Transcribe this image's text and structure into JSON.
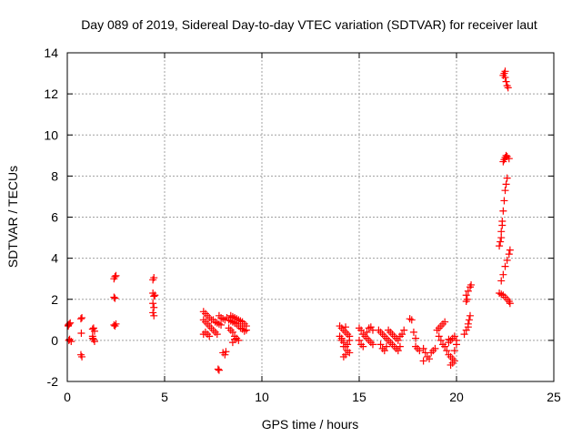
{
  "chart_data": {
    "type": "scatter",
    "title": "Day 089 of 2019, Sidereal Day-to-day VTEC variation (SDTVAR) for receiver laut",
    "xlabel": "GPS time / hours",
    "ylabel": "SDTVAR / TECUs",
    "xlim": [
      0,
      25
    ],
    "ylim": [
      -2,
      14
    ],
    "xticks": [
      0,
      5,
      10,
      15,
      20,
      25
    ],
    "yticks": [
      -2,
      0,
      2,
      4,
      6,
      8,
      10,
      12,
      14
    ],
    "grid": true,
    "marker": "plus",
    "series": [
      {
        "name": "SDTVAR",
        "color": "#ff0000",
        "points": [
          [
            0.05,
            0.7
          ],
          [
            0.1,
            0.8
          ],
          [
            0.15,
            0.85
          ],
          [
            0.08,
            0.0
          ],
          [
            0.12,
            0.05
          ],
          [
            0.2,
            -0.05
          ],
          [
            0.05,
            0.75
          ],
          [
            0.7,
            1.05
          ],
          [
            0.75,
            1.1
          ],
          [
            0.72,
            0.35
          ],
          [
            0.7,
            -0.7
          ],
          [
            0.75,
            -0.8
          ],
          [
            1.3,
            0.55
          ],
          [
            1.35,
            0.6
          ],
          [
            1.4,
            0.45
          ],
          [
            1.3,
            0.2
          ],
          [
            1.35,
            0.05
          ],
          [
            1.4,
            -0.05
          ],
          [
            1.3,
            0.1
          ],
          [
            2.4,
            3.0
          ],
          [
            2.45,
            3.1
          ],
          [
            2.5,
            3.15
          ],
          [
            2.4,
            2.1
          ],
          [
            2.45,
            2.05
          ],
          [
            2.4,
            0.75
          ],
          [
            2.45,
            0.7
          ],
          [
            2.5,
            0.8
          ],
          [
            4.4,
            2.95
          ],
          [
            4.45,
            3.05
          ],
          [
            4.4,
            2.3
          ],
          [
            4.45,
            2.15
          ],
          [
            4.5,
            2.2
          ],
          [
            4.4,
            1.8
          ],
          [
            4.45,
            1.6
          ],
          [
            4.4,
            1.35
          ],
          [
            4.45,
            1.2
          ],
          [
            7.0,
            1.4
          ],
          [
            7.1,
            1.3
          ],
          [
            7.2,
            1.2
          ],
          [
            7.3,
            1.1
          ],
          [
            7.4,
            1.0
          ],
          [
            7.5,
            1.0
          ],
          [
            7.6,
            0.9
          ],
          [
            7.7,
            0.85
          ],
          [
            7.8,
            0.8
          ],
          [
            7.9,
            0.75
          ],
          [
            7.0,
            1.0
          ],
          [
            7.1,
            0.9
          ],
          [
            7.2,
            0.8
          ],
          [
            7.3,
            0.7
          ],
          [
            7.4,
            0.6
          ],
          [
            7.5,
            0.5
          ],
          [
            7.6,
            0.4
          ],
          [
            7.7,
            0.3
          ],
          [
            7.1,
            0.4
          ],
          [
            7.2,
            0.3
          ],
          [
            7.3,
            0.2
          ],
          [
            7.0,
            0.3
          ],
          [
            7.8,
            1.2
          ],
          [
            7.9,
            1.1
          ],
          [
            8.0,
            1.05
          ],
          [
            8.1,
            1.0
          ],
          [
            7.75,
            -1.4
          ],
          [
            7.8,
            -1.45
          ],
          [
            8.0,
            -0.6
          ],
          [
            8.1,
            -0.7
          ],
          [
            8.15,
            -0.55
          ],
          [
            8.2,
            1.1
          ],
          [
            8.3,
            1.0
          ],
          [
            8.4,
            0.95
          ],
          [
            8.5,
            0.9
          ],
          [
            8.6,
            0.85
          ],
          [
            8.7,
            0.8
          ],
          [
            8.8,
            0.7
          ],
          [
            8.9,
            0.6
          ],
          [
            9.0,
            0.55
          ],
          [
            8.3,
            0.6
          ],
          [
            8.4,
            0.5
          ],
          [
            8.5,
            0.4
          ],
          [
            8.6,
            0.2
          ],
          [
            8.7,
            0.1
          ],
          [
            8.8,
            0.0
          ],
          [
            8.5,
            -0.1
          ],
          [
            8.6,
            0.05
          ],
          [
            8.4,
            1.2
          ],
          [
            8.5,
            1.15
          ],
          [
            8.6,
            1.1
          ],
          [
            8.7,
            1.05
          ],
          [
            8.8,
            1.0
          ],
          [
            8.9,
            0.95
          ],
          [
            9.0,
            0.9
          ],
          [
            9.1,
            0.8
          ],
          [
            9.2,
            0.7
          ],
          [
            9.2,
            0.5
          ],
          [
            9.1,
            0.45
          ],
          [
            14.0,
            0.7
          ],
          [
            14.1,
            0.6
          ],
          [
            14.2,
            0.5
          ],
          [
            14.3,
            0.4
          ],
          [
            14.4,
            0.3
          ],
          [
            14.5,
            0.2
          ],
          [
            14.0,
            0.2
          ],
          [
            14.1,
            0.1
          ],
          [
            14.2,
            -0.1
          ],
          [
            14.3,
            -0.3
          ],
          [
            14.4,
            -0.5
          ],
          [
            14.5,
            -0.6
          ],
          [
            14.3,
            -0.7
          ],
          [
            14.2,
            -0.8
          ],
          [
            14.1,
            0.0
          ],
          [
            14.2,
            -0.3
          ],
          [
            14.4,
            -0.2
          ],
          [
            14.5,
            0.0
          ],
          [
            14.3,
            0.65
          ],
          [
            15.0,
            0.6
          ],
          [
            15.1,
            0.5
          ],
          [
            15.2,
            0.3
          ],
          [
            15.3,
            0.2
          ],
          [
            15.4,
            0.1
          ],
          [
            15.5,
            0.0
          ],
          [
            15.6,
            -0.1
          ],
          [
            15.7,
            -0.2
          ],
          [
            15.0,
            0.0
          ],
          [
            15.1,
            -0.2
          ],
          [
            15.2,
            -0.3
          ],
          [
            15.4,
            0.4
          ],
          [
            15.5,
            0.6
          ],
          [
            15.6,
            0.65
          ],
          [
            15.7,
            0.5
          ],
          [
            16.0,
            0.5
          ],
          [
            16.1,
            0.4
          ],
          [
            16.2,
            0.3
          ],
          [
            16.3,
            0.2
          ],
          [
            16.4,
            0.1
          ],
          [
            16.5,
            0.0
          ],
          [
            16.6,
            -0.1
          ],
          [
            16.7,
            -0.2
          ],
          [
            16.8,
            -0.3
          ],
          [
            16.9,
            -0.4
          ],
          [
            17.0,
            -0.5
          ],
          [
            16.2,
            -0.4
          ],
          [
            16.3,
            -0.5
          ],
          [
            16.5,
            0.5
          ],
          [
            16.6,
            0.4
          ],
          [
            16.7,
            0.3
          ],
          [
            16.8,
            0.2
          ],
          [
            16.9,
            0.1
          ],
          [
            17.0,
            0.0
          ],
          [
            17.1,
            0.2
          ],
          [
            17.2,
            0.3
          ],
          [
            17.3,
            0.5
          ],
          [
            16.1,
            -0.2
          ],
          [
            16.4,
            -0.3
          ],
          [
            17.1,
            -0.3
          ],
          [
            17.6,
            1.05
          ],
          [
            17.7,
            1.0
          ],
          [
            17.8,
            0.4
          ],
          [
            17.9,
            0.1
          ],
          [
            17.9,
            -0.3
          ],
          [
            18.0,
            -0.4
          ],
          [
            18.1,
            -0.5
          ],
          [
            18.3,
            -0.4
          ],
          [
            18.4,
            -0.6
          ],
          [
            18.5,
            -0.8
          ],
          [
            18.6,
            -0.9
          ],
          [
            18.3,
            -1.0
          ],
          [
            18.7,
            -0.6
          ],
          [
            18.8,
            -0.5
          ],
          [
            18.9,
            -0.4
          ],
          [
            19.0,
            0.5
          ],
          [
            19.1,
            0.6
          ],
          [
            19.2,
            0.7
          ],
          [
            19.3,
            0.8
          ],
          [
            19.4,
            0.9
          ],
          [
            19.1,
            0.2
          ],
          [
            19.2,
            0.0
          ],
          [
            19.3,
            -0.2
          ],
          [
            19.4,
            -0.3
          ],
          [
            19.5,
            -0.5
          ],
          [
            19.6,
            -0.7
          ],
          [
            19.7,
            -0.8
          ],
          [
            19.8,
            -0.9
          ],
          [
            19.9,
            -1.0
          ],
          [
            19.7,
            -1.2
          ],
          [
            19.8,
            -1.1
          ],
          [
            19.9,
            -0.5
          ],
          [
            20.0,
            -0.2
          ],
          [
            19.6,
            -0.1
          ],
          [
            19.7,
            0.0
          ],
          [
            19.8,
            0.1
          ],
          [
            19.9,
            0.2
          ],
          [
            20.0,
            0.0
          ],
          [
            19.6,
            0.05
          ],
          [
            20.5,
            2.2
          ],
          [
            20.6,
            2.4
          ],
          [
            20.7,
            2.6
          ],
          [
            20.75,
            2.7
          ],
          [
            20.5,
            1.9
          ],
          [
            20.55,
            2.0
          ],
          [
            20.4,
            0.3
          ],
          [
            20.5,
            0.5
          ],
          [
            20.6,
            0.8
          ],
          [
            20.65,
            1.0
          ],
          [
            20.7,
            1.2
          ],
          [
            20.6,
            0.65
          ],
          [
            22.2,
            4.6
          ],
          [
            22.25,
            4.8
          ],
          [
            22.3,
            5.3
          ],
          [
            22.35,
            5.8
          ],
          [
            22.4,
            6.3
          ],
          [
            22.45,
            6.8
          ],
          [
            22.5,
            7.3
          ],
          [
            22.55,
            7.6
          ],
          [
            22.6,
            7.9
          ],
          [
            22.3,
            5.0
          ],
          [
            22.35,
            5.6
          ],
          [
            22.4,
            8.7
          ],
          [
            22.45,
            8.8
          ],
          [
            22.5,
            8.9
          ],
          [
            22.55,
            9.0
          ],
          [
            22.6,
            8.95
          ],
          [
            22.7,
            8.85
          ],
          [
            22.4,
            12.9
          ],
          [
            22.45,
            13.0
          ],
          [
            22.5,
            12.8
          ],
          [
            22.55,
            12.6
          ],
          [
            22.6,
            12.4
          ],
          [
            22.65,
            12.3
          ],
          [
            22.5,
            13.1
          ],
          [
            22.3,
            2.9
          ],
          [
            22.4,
            3.2
          ],
          [
            22.5,
            3.6
          ],
          [
            22.6,
            3.9
          ],
          [
            22.7,
            4.2
          ],
          [
            22.75,
            4.4
          ],
          [
            22.2,
            2.3
          ],
          [
            22.3,
            2.25
          ],
          [
            22.4,
            2.2
          ],
          [
            22.5,
            2.1
          ],
          [
            22.6,
            2.0
          ],
          [
            22.7,
            1.9
          ],
          [
            22.75,
            1.8
          ]
        ]
      }
    ]
  }
}
